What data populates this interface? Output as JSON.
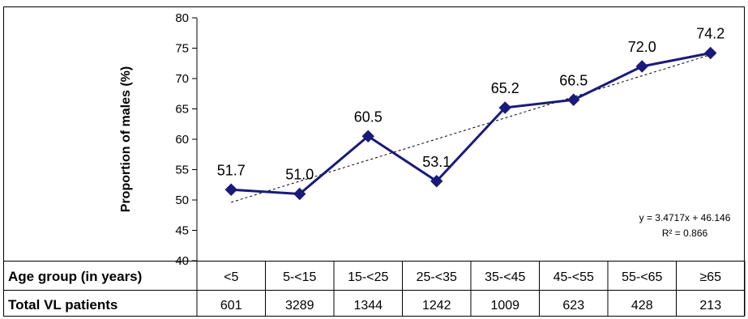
{
  "chart_data": {
    "type": "line",
    "ylabel": "Proportion of males (%)",
    "ylim": [
      40,
      80
    ],
    "ytick_step": 5,
    "categories": [
      "<5",
      "5-<15",
      "15-<25",
      "25-<35",
      "35-<45",
      "45-<55",
      "55-<65",
      "≥65"
    ],
    "series": [
      {
        "values": [
          51.7,
          51.0,
          60.5,
          53.1,
          65.2,
          66.5,
          72.0,
          74.2
        ],
        "color": "#1a1a7a",
        "marker": "diamond"
      }
    ],
    "data_labels": [
      "51.7",
      "51.0",
      "60.5",
      "53.1",
      "65.2",
      "66.5",
      "72.0",
      "74.2"
    ],
    "trendline": {
      "style": "dashed",
      "slope": 3.4717,
      "intercept": 46.146,
      "equation": "y = 3.4717x + 46.146",
      "r_squared": "R² = 0.866"
    },
    "table": {
      "row1_header": "Age group (in years)",
      "row2_header": "Total VL patients",
      "totals": [
        "601",
        "3289",
        "1344",
        "1242",
        "1009",
        "623",
        "428",
        "213"
      ]
    }
  }
}
